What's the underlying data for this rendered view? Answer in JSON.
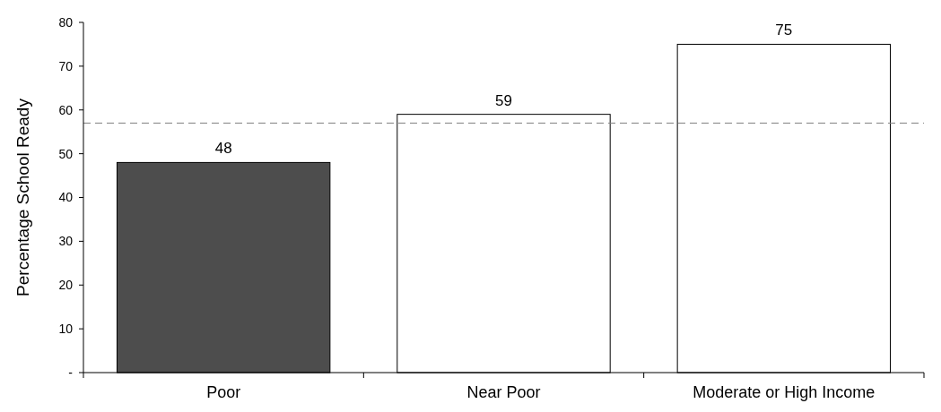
{
  "chart_data": {
    "type": "bar",
    "ylabel": "Percentage School Ready",
    "categories": [
      "Poor",
      "Near Poor",
      "Moderate or High Income"
    ],
    "values": [
      48,
      59,
      75
    ],
    "colors": [
      "#4d4d4d",
      "#ffffff",
      "#ffffff"
    ],
    "ylim": [
      0,
      80
    ],
    "yticks": [
      {
        "value": 0,
        "label": "-"
      },
      10,
      20,
      30,
      40,
      50,
      60,
      70,
      80
    ],
    "data_labels": true,
    "ref_lines": [
      {
        "axis": "y",
        "value": 57,
        "color": "#808080",
        "line_style": "dashed"
      }
    ],
    "grid": false
  }
}
